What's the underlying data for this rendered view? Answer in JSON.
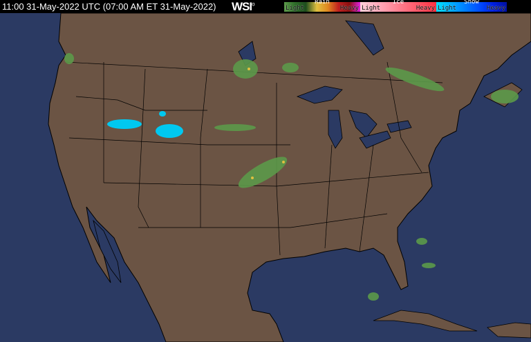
{
  "header": {
    "timestamp": "11:00 31-May-2022 UTC  (07:00 AM ET 31-May-2022)",
    "logo": "WSI"
  },
  "legend": [
    {
      "type": "Rain",
      "light": "Light",
      "heavy": "Heavy",
      "colors": [
        "#5c9a4a",
        "#2e6b2a",
        "#1e4d1e",
        "#e0c040",
        "#e08a20",
        "#c02020",
        "#8a1010",
        "#e020e0"
      ]
    },
    {
      "type": "Ice",
      "light": "Light",
      "heavy": "Heavy",
      "colors": [
        "#ffd0d8",
        "#ffb0c0",
        "#ff90a0",
        "#ff7080",
        "#ff5060",
        "#ff3040"
      ]
    },
    {
      "type": "Snow",
      "light": "Light",
      "heavy": "Heavy",
      "colors": [
        "#00e0ff",
        "#00b0ff",
        "#0080ff",
        "#0050ff",
        "#0020e0",
        "#0010a0"
      ]
    }
  ],
  "colors": {
    "land": "#6b5444",
    "water": "#2b3a63",
    "borders": "#000000"
  }
}
